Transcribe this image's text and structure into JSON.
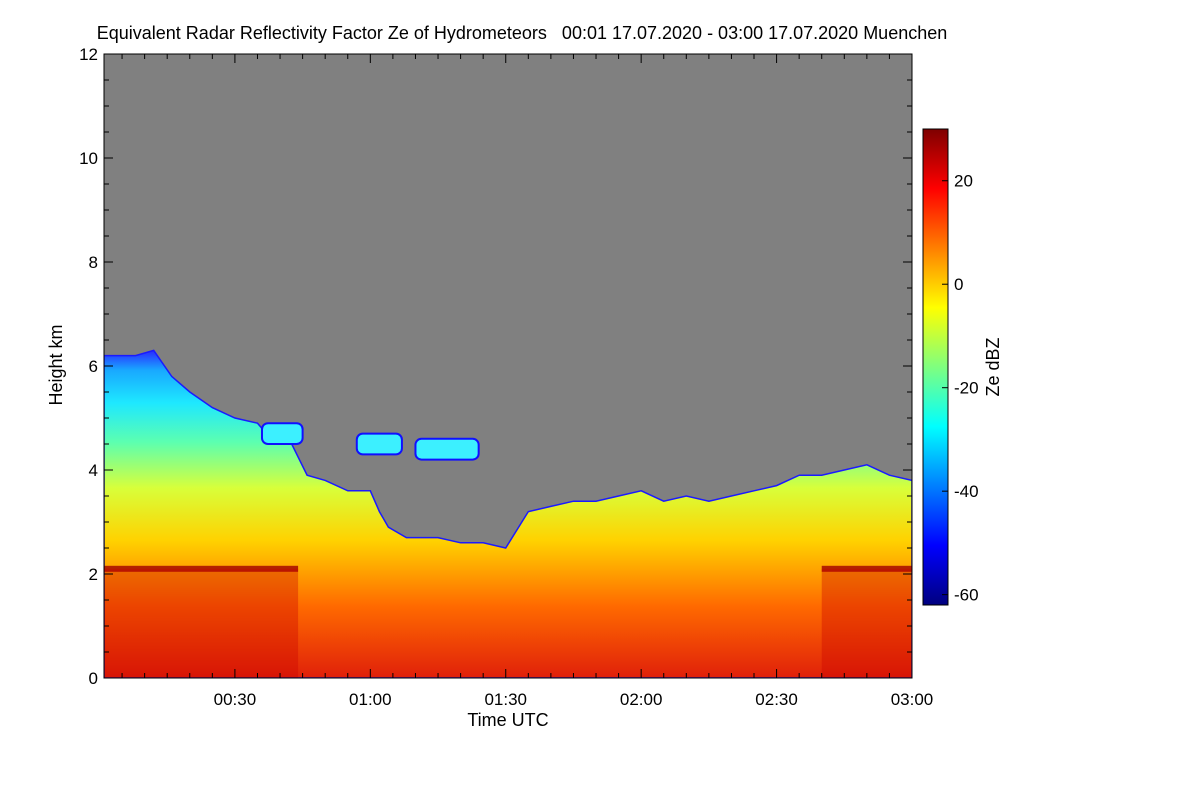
{
  "chart_data": {
    "type": "heatmap",
    "title": "Equivalent Radar Reflectivity Factor Ze of Hydrometeors   00:01 17.07.2020 - 03:00 17.07.2020 Muenchen",
    "xlabel": "Time UTC",
    "ylabel": "Height km",
    "colorbar_label": "Ze dBZ",
    "x_range_minutes": [
      1,
      180
    ],
    "x_ticks": [
      {
        "value": 30,
        "label": "00:30"
      },
      {
        "value": 60,
        "label": "01:00"
      },
      {
        "value": 90,
        "label": "01:30"
      },
      {
        "value": 120,
        "label": "02:00"
      },
      {
        "value": 150,
        "label": "02:30"
      },
      {
        "value": 180,
        "label": "03:00"
      }
    ],
    "ylim": [
      0,
      12
    ],
    "y_ticks": [
      0,
      2,
      4,
      6,
      8,
      10,
      12
    ],
    "clim": [
      -62,
      30
    ],
    "colorbar_ticks": [
      -60,
      -40,
      -20,
      0,
      20
    ],
    "background_color": "#808080",
    "colormap": [
      "#00007f",
      "#0000ff",
      "#007fff",
      "#00ffff",
      "#7fff7f",
      "#ffff00",
      "#ff7f00",
      "#ff0000",
      "#7f0000"
    ],
    "echo_top_km": [
      {
        "t": 1,
        "km": 6.2
      },
      {
        "t": 8,
        "km": 6.2
      },
      {
        "t": 12,
        "km": 6.3
      },
      {
        "t": 16,
        "km": 5.8
      },
      {
        "t": 20,
        "km": 5.5
      },
      {
        "t": 25,
        "km": 5.2
      },
      {
        "t": 30,
        "km": 5.0
      },
      {
        "t": 35,
        "km": 4.9
      },
      {
        "t": 38,
        "km": 4.6
      },
      {
        "t": 42,
        "km": 4.6
      },
      {
        "t": 46,
        "km": 3.9
      },
      {
        "t": 50,
        "km": 3.8
      },
      {
        "t": 55,
        "km": 3.6
      },
      {
        "t": 60,
        "km": 3.6
      },
      {
        "t": 62,
        "km": 3.2
      },
      {
        "t": 64,
        "km": 2.9
      },
      {
        "t": 68,
        "km": 2.7
      },
      {
        "t": 75,
        "km": 2.7
      },
      {
        "t": 80,
        "km": 2.6
      },
      {
        "t": 85,
        "km": 2.6
      },
      {
        "t": 90,
        "km": 2.5
      },
      {
        "t": 95,
        "km": 3.2
      },
      {
        "t": 100,
        "km": 3.3
      },
      {
        "t": 105,
        "km": 3.4
      },
      {
        "t": 110,
        "km": 3.4
      },
      {
        "t": 115,
        "km": 3.5
      },
      {
        "t": 120,
        "km": 3.6
      },
      {
        "t": 125,
        "km": 3.4
      },
      {
        "t": 130,
        "km": 3.5
      },
      {
        "t": 135,
        "km": 3.4
      },
      {
        "t": 140,
        "km": 3.5
      },
      {
        "t": 145,
        "km": 3.6
      },
      {
        "t": 150,
        "km": 3.7
      },
      {
        "t": 155,
        "km": 3.9
      },
      {
        "t": 160,
        "km": 3.9
      },
      {
        "t": 165,
        "km": 4.0
      },
      {
        "t": 170,
        "km": 4.1
      },
      {
        "t": 175,
        "km": 3.9
      },
      {
        "t": 180,
        "km": 3.8
      }
    ],
    "isolated_echoes": [
      {
        "t0": 36,
        "t1": 45,
        "km_lo": 4.5,
        "km_hi": 4.9
      },
      {
        "t0": 57,
        "t1": 67,
        "km_lo": 4.3,
        "km_hi": 4.7
      },
      {
        "t0": 70,
        "t1": 84,
        "km_lo": 4.2,
        "km_hi": 4.6
      }
    ],
    "bright_band_km": 2.1,
    "bright_band_spans": [
      {
        "t0": 1,
        "t1": 44
      },
      {
        "t0": 160,
        "t1": 180
      }
    ]
  }
}
